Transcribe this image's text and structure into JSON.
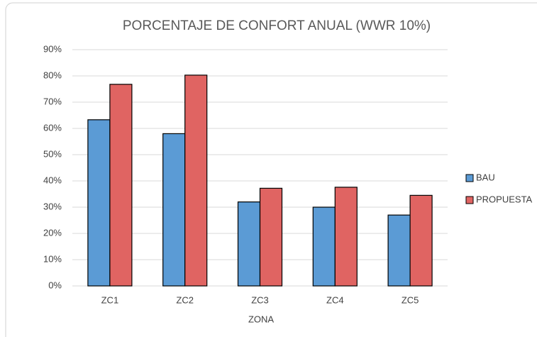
{
  "chart_data": {
    "type": "bar",
    "title": "PORCENTAJE DE CONFORT ANUAL (WWR 10%)",
    "x_label": "ZONA",
    "categories": [
      "ZC1",
      "ZC2",
      "ZC3",
      "ZC4",
      "ZC5"
    ],
    "series": [
      {
        "name": "BAU",
        "color": "#5b9bd5",
        "values": [
          63.3,
          58,
          32,
          30,
          27
        ]
      },
      {
        "name": "PROPUESTA",
        "color": "#e06462",
        "values": [
          76.8,
          80.3,
          37.2,
          37.6,
          34.5
        ]
      }
    ],
    "ylim": [
      0,
      90
    ],
    "yticks": [
      {
        "value": 0,
        "label": "0%"
      },
      {
        "value": 10,
        "label": "10%"
      },
      {
        "value": 20,
        "label": "20%"
      },
      {
        "value": 30,
        "label": "30%"
      },
      {
        "value": 40,
        "label": "40%"
      },
      {
        "value": 50,
        "label": "50%"
      },
      {
        "value": 60,
        "label": "60%"
      },
      {
        "value": 70,
        "label": "70%"
      },
      {
        "value": 80,
        "label": "80%"
      },
      {
        "value": 90,
        "label": "90%"
      }
    ],
    "grid": true,
    "legend": "right"
  }
}
